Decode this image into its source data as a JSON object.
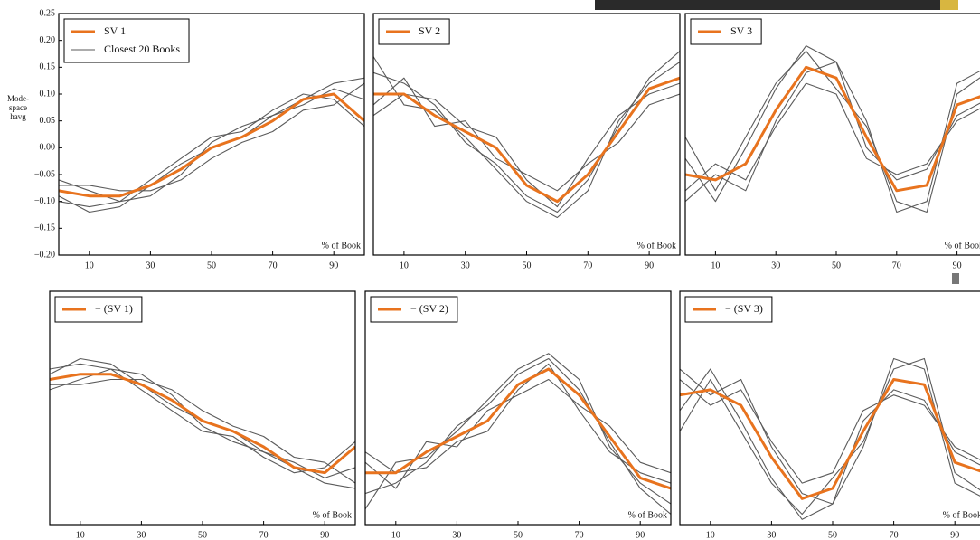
{
  "chart_data": [
    {
      "type": "line",
      "ylabel": [
        "Mode-",
        "space",
        "havg"
      ],
      "xlabel": "% of Book",
      "x": [
        0,
        10,
        20,
        30,
        40,
        50,
        60,
        70,
        80,
        90,
        100
      ],
      "xlim": [
        0,
        100
      ],
      "xticks": [
        10,
        30,
        50,
        70,
        90
      ],
      "ylim": [
        -0.2,
        0.25
      ],
      "yticks": [
        0.25,
        {
          "value": 0.2,
          "label": "0.20"
        },
        0.15,
        {
          "value": 0.1,
          "label": "0.10"
        },
        0.05,
        {
          "value": 0,
          "label": "0.00"
        },
        {
          "value": -0.05,
          "label": "−0.05"
        },
        {
          "value": -0.1,
          "label": "−0.10"
        },
        {
          "value": -0.15,
          "label": "−0.15"
        },
        {
          "value": -0.2,
          "label": "−0.20"
        }
      ],
      "series": [
        {
          "name": "SV 1",
          "color": "#e8731e",
          "values": [
            -0.08,
            -0.09,
            -0.09,
            -0.07,
            -0.04,
            0.0,
            0.02,
            0.05,
            0.09,
            0.1,
            0.05
          ]
        },
        {
          "name": "Closest 20 Books",
          "color": "#5a5a5a",
          "values": [
            -0.06,
            -0.08,
            -0.1,
            -0.09,
            -0.05,
            0.01,
            0.04,
            0.06,
            0.08,
            0.11,
            0.09
          ]
        },
        {
          "color": "#5a5a5a",
          "values": [
            -0.1,
            -0.11,
            -0.1,
            -0.06,
            -0.02,
            0.02,
            0.03,
            0.07,
            0.1,
            0.09,
            0.04
          ]
        },
        {
          "color": "#5a5a5a",
          "values": [
            -0.07,
            -0.07,
            -0.08,
            -0.08,
            -0.06,
            -0.02,
            0.01,
            0.03,
            0.07,
            0.08,
            0.12
          ]
        },
        {
          "color": "#5a5a5a",
          "values": [
            -0.09,
            -0.12,
            -0.11,
            -0.07,
            -0.03,
            0.0,
            0.02,
            0.06,
            0.09,
            0.12,
            0.13
          ]
        }
      ]
    },
    {
      "type": "line",
      "xlabel": "% of Book",
      "x": [
        0,
        10,
        20,
        30,
        40,
        50,
        60,
        70,
        80,
        90,
        100
      ],
      "xlim": [
        0,
        100
      ],
      "xticks": [
        10,
        30,
        50,
        70,
        90
      ],
      "ylim": [
        -0.2,
        0.25
      ],
      "series": [
        {
          "name": "SV 2",
          "color": "#e8731e",
          "values": [
            0.1,
            0.1,
            0.06,
            0.03,
            0.0,
            -0.07,
            -0.1,
            -0.05,
            0.03,
            0.11,
            0.13
          ]
        },
        {
          "color": "#5a5a5a",
          "values": [
            0.14,
            0.12,
            0.08,
            0.01,
            -0.03,
            -0.09,
            -0.12,
            -0.06,
            0.04,
            0.13,
            0.18
          ]
        },
        {
          "color": "#5a5a5a",
          "values": [
            0.08,
            0.13,
            0.04,
            0.05,
            -0.02,
            -0.05,
            -0.08,
            -0.03,
            0.01,
            0.08,
            0.1
          ]
        },
        {
          "color": "#5a5a5a",
          "values": [
            0.17,
            0.08,
            0.07,
            0.02,
            -0.04,
            -0.1,
            -0.13,
            -0.08,
            0.05,
            0.12,
            0.16
          ]
        },
        {
          "color": "#5a5a5a",
          "values": [
            0.06,
            0.1,
            0.09,
            0.04,
            0.02,
            -0.06,
            -0.11,
            -0.02,
            0.06,
            0.1,
            0.12
          ]
        }
      ]
    },
    {
      "type": "line",
      "xlabel": "% of Book",
      "x": [
        0,
        10,
        20,
        30,
        40,
        50,
        60,
        70,
        80,
        90,
        100
      ],
      "xlim": [
        0,
        100
      ],
      "xticks": [
        10,
        30,
        50,
        70,
        90
      ],
      "ylim": [
        -0.2,
        0.25
      ],
      "series": [
        {
          "name": "SV 3",
          "color": "#e8731e",
          "values": [
            -0.05,
            -0.06,
            -0.03,
            0.07,
            0.15,
            0.13,
            0.02,
            -0.08,
            -0.07,
            0.08,
            0.1
          ]
        },
        {
          "color": "#5a5a5a",
          "values": [
            -0.02,
            -0.1,
            0.0,
            0.11,
            0.19,
            0.16,
            0.05,
            -0.12,
            -0.1,
            0.12,
            0.15
          ]
        },
        {
          "color": "#5a5a5a",
          "values": [
            -0.08,
            -0.03,
            -0.06,
            0.04,
            0.12,
            0.1,
            -0.02,
            -0.05,
            -0.03,
            0.05,
            0.08
          ]
        },
        {
          "color": "#5a5a5a",
          "values": [
            0.02,
            -0.08,
            0.02,
            0.12,
            0.18,
            0.11,
            0.04,
            -0.1,
            -0.12,
            0.1,
            0.14
          ]
        },
        {
          "color": "#5a5a5a",
          "values": [
            -0.1,
            -0.05,
            -0.08,
            0.05,
            0.14,
            0.16,
            0.0,
            -0.06,
            -0.04,
            0.06,
            0.09
          ]
        }
      ]
    },
    {
      "type": "line",
      "xlabel": "% of Book",
      "x": [
        0,
        10,
        20,
        30,
        40,
        50,
        60,
        70,
        80,
        90,
        100
      ],
      "xlim": [
        0,
        100
      ],
      "xticks": [
        10,
        30,
        50,
        70,
        90
      ],
      "ylim": [
        -0.2,
        0.25
      ],
      "series": [
        {
          "name": "− (SV 1)",
          "color": "#e8731e",
          "values": [
            0.08,
            0.09,
            0.09,
            0.07,
            0.04,
            0.0,
            -0.02,
            -0.05,
            -0.09,
            -0.1,
            -0.05
          ]
        },
        {
          "color": "#5a5a5a",
          "values": [
            0.06,
            0.08,
            0.1,
            0.09,
            0.05,
            -0.01,
            -0.04,
            -0.06,
            -0.08,
            -0.11,
            -0.09
          ]
        },
        {
          "color": "#5a5a5a",
          "values": [
            0.1,
            0.11,
            0.1,
            0.06,
            0.02,
            -0.02,
            -0.03,
            -0.07,
            -0.1,
            -0.09,
            -0.04
          ]
        },
        {
          "color": "#5a5a5a",
          "values": [
            0.07,
            0.07,
            0.08,
            0.08,
            0.06,
            0.02,
            -0.01,
            -0.03,
            -0.07,
            -0.08,
            -0.12
          ]
        },
        {
          "color": "#5a5a5a",
          "values": [
            0.09,
            0.12,
            0.11,
            0.07,
            0.03,
            0.0,
            -0.02,
            -0.06,
            -0.09,
            -0.12,
            -0.13
          ]
        }
      ]
    },
    {
      "type": "line",
      "xlabel": "% of Book",
      "x": [
        0,
        10,
        20,
        30,
        40,
        50,
        60,
        70,
        80,
        90,
        100
      ],
      "xlim": [
        0,
        100
      ],
      "xticks": [
        10,
        30,
        50,
        70,
        90
      ],
      "ylim": [
        -0.2,
        0.25
      ],
      "series": [
        {
          "name": "− (SV 2)",
          "color": "#e8731e",
          "values": [
            -0.1,
            -0.1,
            -0.06,
            -0.03,
            0.0,
            0.07,
            0.1,
            0.05,
            -0.03,
            -0.11,
            -0.13
          ]
        },
        {
          "color": "#5a5a5a",
          "values": [
            -0.14,
            -0.12,
            -0.08,
            -0.01,
            0.03,
            0.09,
            0.12,
            0.06,
            -0.04,
            -0.13,
            -0.18
          ]
        },
        {
          "color": "#5a5a5a",
          "values": [
            -0.08,
            -0.13,
            -0.04,
            -0.05,
            0.02,
            0.05,
            0.08,
            0.03,
            -0.01,
            -0.08,
            -0.1
          ]
        },
        {
          "color": "#5a5a5a",
          "values": [
            -0.17,
            -0.08,
            -0.07,
            -0.02,
            0.04,
            0.1,
            0.13,
            0.08,
            -0.05,
            -0.12,
            -0.16
          ]
        },
        {
          "color": "#5a5a5a",
          "values": [
            -0.06,
            -0.1,
            -0.09,
            -0.04,
            -0.02,
            0.06,
            0.11,
            0.02,
            -0.06,
            -0.1,
            -0.12
          ]
        }
      ]
    },
    {
      "type": "line",
      "xlabel": "% of Book",
      "x": [
        0,
        10,
        20,
        30,
        40,
        50,
        60,
        70,
        80,
        90,
        100
      ],
      "xlim": [
        0,
        100
      ],
      "xticks": [
        10,
        30,
        50,
        70,
        90
      ],
      "ylim": [
        -0.2,
        0.25
      ],
      "series": [
        {
          "name": "− (SV 3)",
          "color": "#e8731e",
          "values": [
            0.05,
            0.06,
            0.03,
            -0.07,
            -0.15,
            -0.13,
            -0.02,
            0.08,
            0.07,
            -0.08,
            -0.1
          ]
        },
        {
          "color": "#5a5a5a",
          "values": [
            0.02,
            0.1,
            0.0,
            -0.11,
            -0.19,
            -0.16,
            -0.05,
            0.12,
            0.1,
            -0.12,
            -0.15
          ]
        },
        {
          "color": "#5a5a5a",
          "values": [
            0.08,
            0.03,
            0.06,
            -0.04,
            -0.12,
            -0.1,
            0.02,
            0.05,
            0.03,
            -0.05,
            -0.08
          ]
        },
        {
          "color": "#5a5a5a",
          "values": [
            -0.02,
            0.08,
            -0.02,
            -0.12,
            -0.18,
            -0.11,
            -0.04,
            0.1,
            0.12,
            -0.1,
            -0.14
          ]
        },
        {
          "color": "#5a5a5a",
          "values": [
            0.1,
            0.05,
            0.08,
            -0.05,
            -0.14,
            -0.16,
            0.0,
            0.06,
            0.04,
            -0.06,
            -0.09
          ]
        }
      ]
    }
  ]
}
